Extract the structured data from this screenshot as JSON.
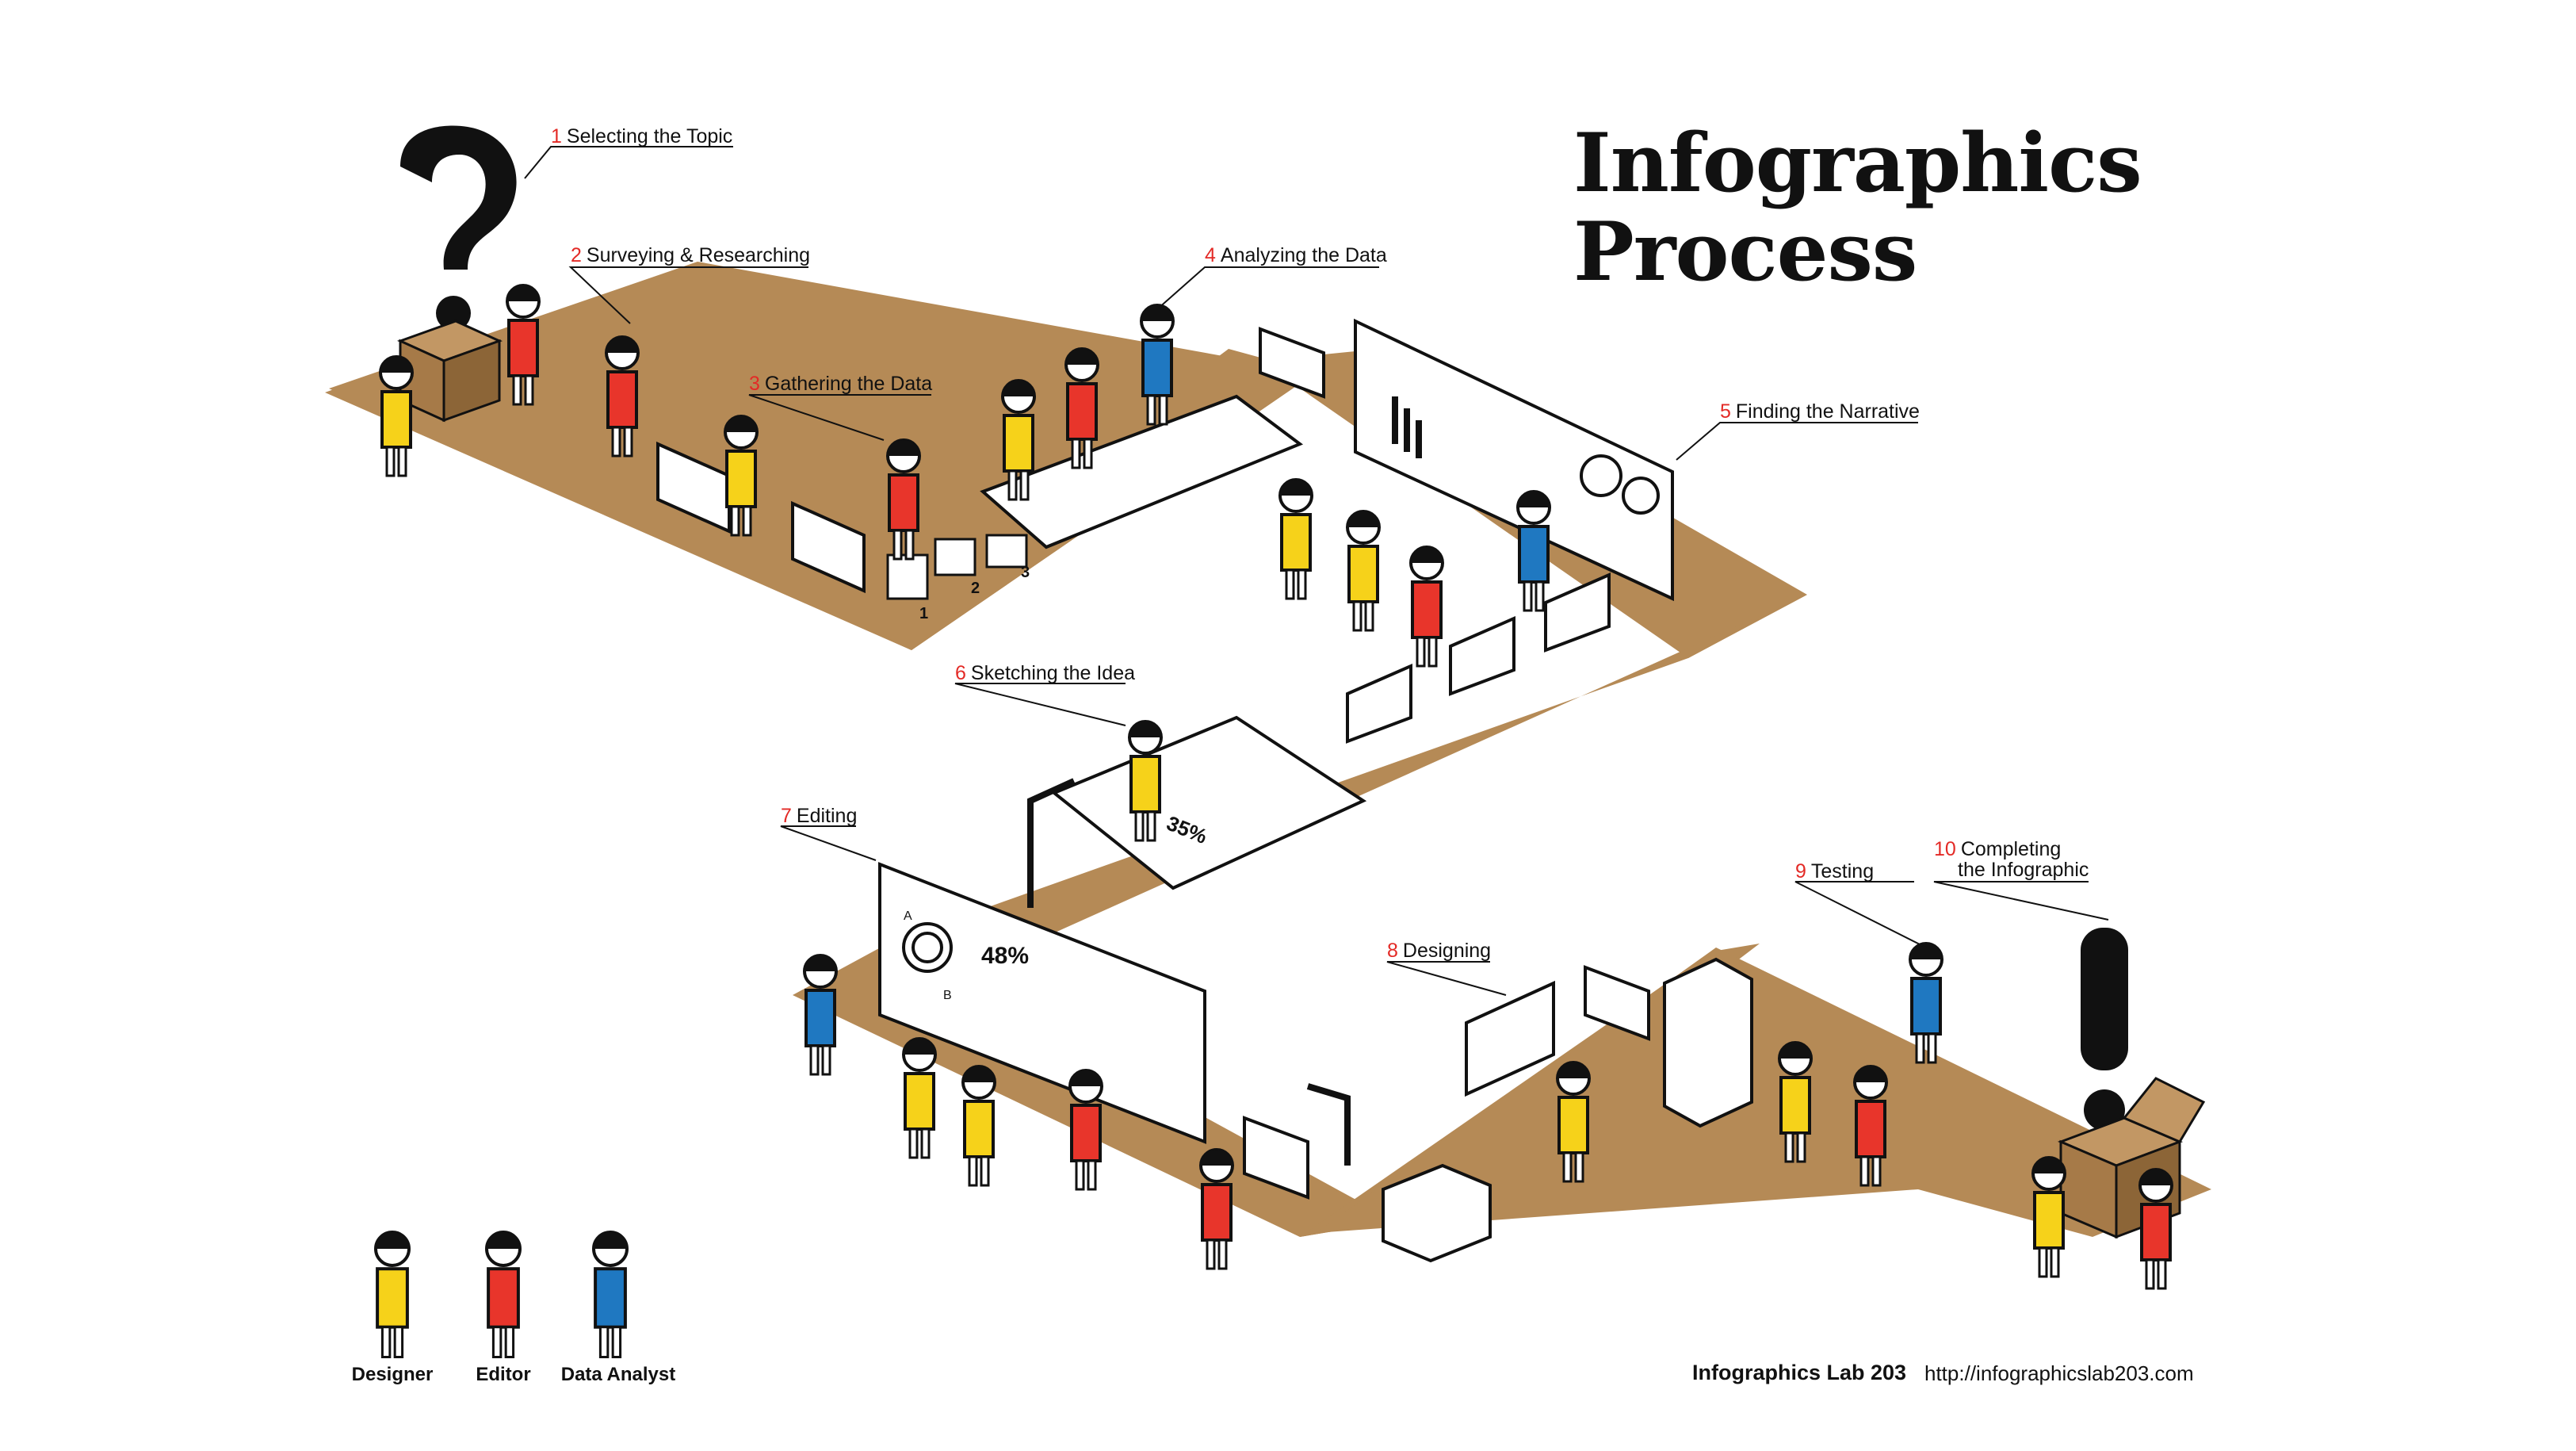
{
  "title": {
    "line1": "Infographics",
    "line2": "Process"
  },
  "steps": [
    {
      "num": "1",
      "label": "Selecting the Topic"
    },
    {
      "num": "2",
      "label": "Surveying & Researching"
    },
    {
      "num": "3",
      "label": "Gathering the Data"
    },
    {
      "num": "4",
      "label": "Analyzing the Data"
    },
    {
      "num": "5",
      "label": "Finding the Narrative"
    },
    {
      "num": "6",
      "label": "Sketching the Idea"
    },
    {
      "num": "7",
      "label": "Editing"
    },
    {
      "num": "8",
      "label": "Designing"
    },
    {
      "num": "9",
      "label": "Testing"
    },
    {
      "num": "10",
      "label": "Completing",
      "label2": "the Infographic"
    }
  ],
  "board_marks": {
    "sketch_percent": "35%",
    "edit_percent": "48%",
    "edit_a": "A",
    "edit_b": "B",
    "stack_1": "1",
    "stack_2": "2",
    "stack_3": "3"
  },
  "legend": [
    {
      "label": "Designer",
      "color": "#f6d21a"
    },
    {
      "label": "Editor",
      "color": "#e8352b"
    },
    {
      "label": "Data Analyst",
      "color": "#1f78c1"
    }
  ],
  "footer": {
    "brand": "Infographics Lab 203",
    "url": "http://infographicslab203.com"
  },
  "colors": {
    "floor": "#b58a56",
    "floor_edge": "#8c6537",
    "designer": "#f6d21a",
    "editor": "#e8352b",
    "analyst": "#1f78c1",
    "box": "#a67a48",
    "accent": "#e32a26"
  }
}
